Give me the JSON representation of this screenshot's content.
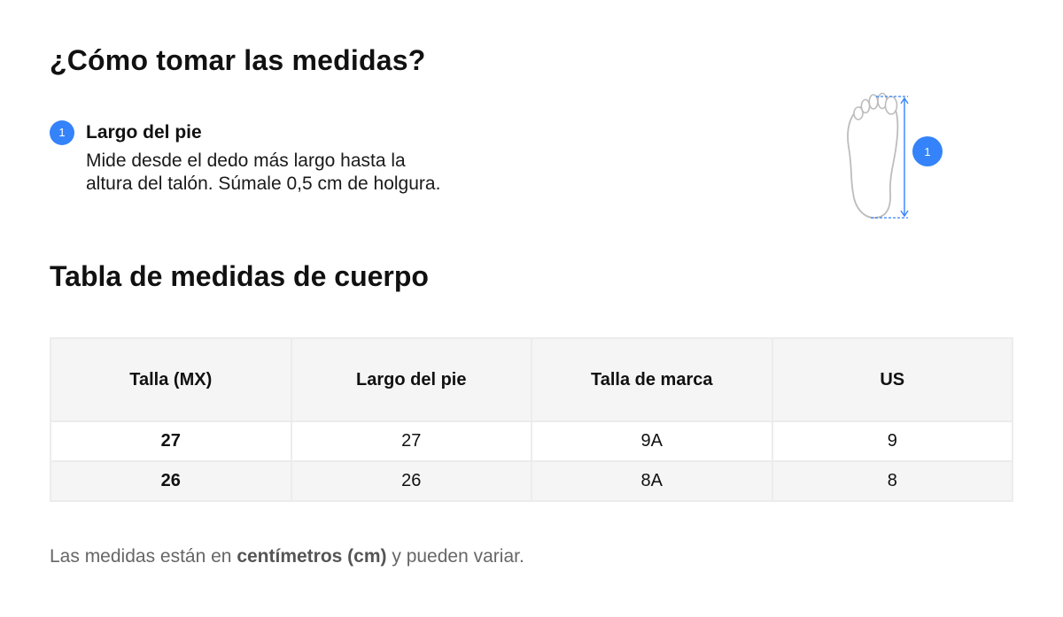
{
  "how_to": {
    "title": "¿Cómo tomar las medidas?",
    "step": {
      "number": "1",
      "title": "Largo del pie",
      "description_line1": "Mide desde el dedo más largo hasta la",
      "description_line2": "altura del talón. Súmale 0,5 cm de holgura."
    },
    "illustration": {
      "icon": "foot-length-icon",
      "marker": "1"
    }
  },
  "size_table": {
    "title": "Tabla de medidas de cuerpo",
    "headers": [
      "Talla (MX)",
      "Largo del pie",
      "Talla de marca",
      "US"
    ],
    "rows": [
      [
        "27",
        "27",
        "9A",
        "9"
      ],
      [
        "26",
        "26",
        "8A",
        "8"
      ]
    ]
  },
  "note": {
    "prefix": "Las medidas están en ",
    "emphasis": "centímetros (cm)",
    "suffix": " y pueden variar."
  },
  "colors": {
    "accent": "#3483fa",
    "header_bg": "#f5f5f5",
    "border": "#ececec",
    "muted_text": "#666666"
  }
}
